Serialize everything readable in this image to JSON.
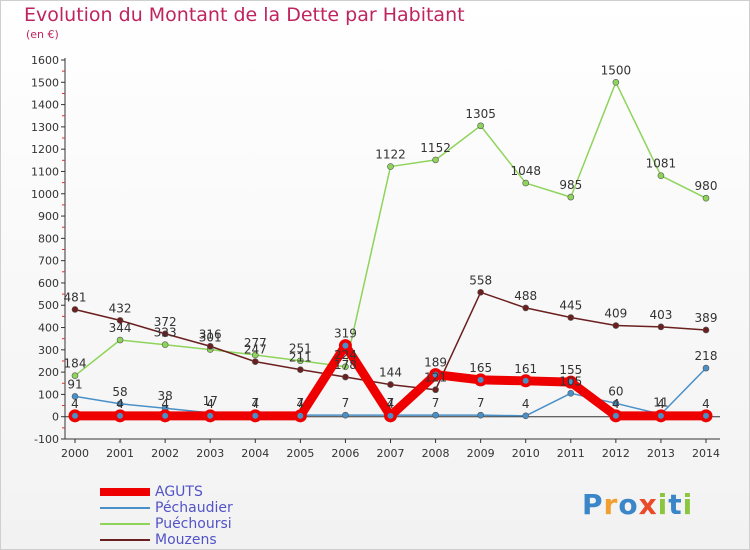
{
  "header": {
    "title": "Evolution du Montant de la Dette par Habitant",
    "unit": "(en €)"
  },
  "logo": {
    "text": "Proxiti",
    "letter_colors": [
      "#3a86c8",
      "#f0a030",
      "#3a86c8",
      "#e84a2a",
      "#8cc63f",
      "#3a86c8",
      "#8cc63f"
    ]
  },
  "chart_data": {
    "type": "line",
    "x": [
      2000,
      2001,
      2002,
      2003,
      2004,
      2005,
      2006,
      2007,
      2008,
      2009,
      2010,
      2011,
      2012,
      2013,
      2014
    ],
    "ylim": [
      -100,
      1600
    ],
    "yticks": [
      -100,
      0,
      100,
      200,
      300,
      400,
      500,
      600,
      700,
      800,
      900,
      1000,
      1100,
      1200,
      1300,
      1400,
      1500,
      1600
    ],
    "grid": false,
    "legend_position": "bottom-left",
    "series": [
      {
        "name": "AGUTS",
        "color": "#ee0000",
        "values": [
          4,
          4,
          4,
          4,
          4,
          4,
          319,
          4,
          189,
          165,
          161,
          155,
          4,
          4,
          4
        ],
        "labels": [
          "4",
          "4",
          "4",
          "4",
          "4",
          "4",
          "319",
          "4",
          "189",
          "165",
          "161",
          "155",
          "4",
          "4",
          "4"
        ]
      },
      {
        "name": "Péchaudier",
        "color": "#4a90c8",
        "values": [
          91,
          58,
          38,
          17,
          7,
          7,
          7,
          7,
          7,
          7,
          4,
          105,
          60,
          11,
          218
        ],
        "labels": [
          "91",
          "58",
          "38",
          "17",
          "7",
          "7",
          "7",
          "7",
          "7",
          "7",
          "4",
          "105",
          "60",
          "11",
          "218"
        ]
      },
      {
        "name": "Puéchoursi",
        "color": "#8ed45a",
        "values": [
          184,
          344,
          323,
          301,
          277,
          251,
          224,
          1122,
          1152,
          1305,
          1048,
          985,
          1500,
          1081,
          980
        ],
        "labels": [
          "184",
          "344",
          "323",
          "301",
          "277",
          "251",
          "224",
          "1122",
          "1152",
          "1305",
          "1048",
          "985",
          "1500",
          "1081",
          "980"
        ]
      },
      {
        "name": "Mouzens",
        "color": "#6b1f1f",
        "values": [
          481,
          432,
          372,
          316,
          247,
          211,
          178,
          144,
          121,
          558,
          488,
          445,
          409,
          403,
          389
        ],
        "labels": [
          "481",
          "432",
          "372",
          "316",
          "247",
          "211",
          "178",
          "144",
          "121",
          "558",
          "488",
          "445",
          "409",
          "403",
          "389"
        ]
      }
    ]
  }
}
